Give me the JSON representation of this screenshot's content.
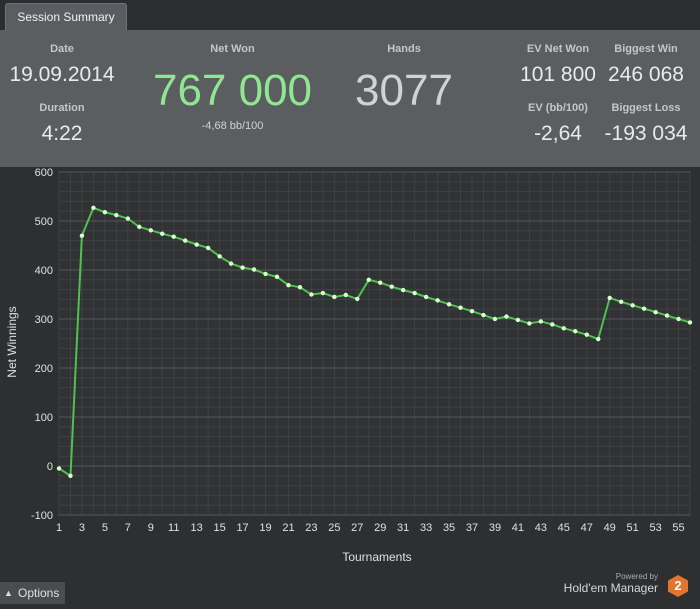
{
  "tab": {
    "label": "Session Summary"
  },
  "summary": {
    "date": {
      "label": "Date",
      "value": "19.09.2014"
    },
    "duration": {
      "label": "Duration",
      "value": "4:22"
    },
    "net_won": {
      "label": "Net Won",
      "value": "767 000",
      "sub": "-4,68 bb/100"
    },
    "hands": {
      "label": "Hands",
      "value": "3077"
    },
    "ev_net_won": {
      "label": "EV Net Won",
      "value": "101 800"
    },
    "biggest_win": {
      "label": "Biggest Win",
      "value": "246 068"
    },
    "ev_bb100": {
      "label": "EV (bb/100)",
      "value": "-2,64"
    },
    "biggest_loss": {
      "label": "Biggest Loss",
      "value": "-193 034"
    }
  },
  "colors": {
    "line": "#4ec24e",
    "point": "#d9ffd0",
    "net_won_value": "#8fe88f"
  },
  "chart_data": {
    "type": "line",
    "title": "",
    "xlabel": "Tournaments",
    "ylabel": "Net Winnings",
    "xlim": [
      1,
      56
    ],
    "ylim": [
      -100,
      600
    ],
    "x_ticks": [
      1,
      3,
      5,
      7,
      9,
      11,
      13,
      15,
      17,
      19,
      21,
      23,
      25,
      27,
      29,
      31,
      33,
      35,
      37,
      39,
      41,
      43,
      45,
      47,
      49,
      51,
      53,
      55
    ],
    "y_ticks": [
      -100,
      0,
      100,
      200,
      300,
      400,
      500,
      600
    ],
    "grid": true,
    "series": [
      {
        "values": [
          -5,
          -20,
          470,
          527,
          518,
          512,
          505,
          488,
          481,
          474,
          468,
          460,
          452,
          445,
          428,
          413,
          405,
          401,
          392,
          386,
          369,
          365,
          350,
          353,
          345,
          349,
          341,
          380,
          374,
          366,
          359,
          353,
          345,
          338,
          330,
          323,
          316,
          308,
          300,
          305,
          298,
          291,
          295,
          289,
          281,
          275,
          268,
          259,
          343,
          335,
          328,
          321,
          314,
          307,
          300,
          293
        ]
      }
    ]
  },
  "footer": {
    "options_label": "Options",
    "powered_by": "Powered by",
    "brand": "Hold'em Manager",
    "brand_num": "2"
  }
}
